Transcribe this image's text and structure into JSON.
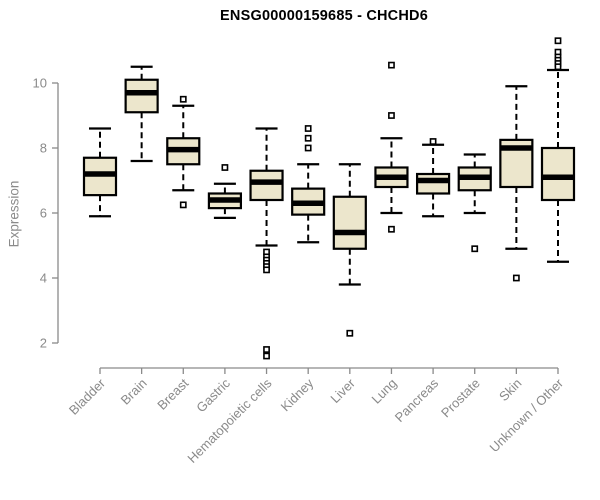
{
  "window": {
    "title": "ENSG00000159685 - CHCHD6"
  },
  "colors": {
    "box_fill": "#ECE6CC",
    "box_stroke": "#000000",
    "median": "#000000",
    "whisker": "#000000",
    "outlier_stroke": "#000000",
    "outlier_fill": "#ffffff",
    "axis": "#8a8a8a",
    "tick_label": "#8a8a8a",
    "title": "#000000",
    "background": "#ffffff"
  },
  "chart_data": {
    "type": "boxplot",
    "title": "ENSG00000159685 - CHCHD6",
    "xlabel": "",
    "ylabel": "Expression",
    "grid": false,
    "legend": "none",
    "y_axis_ticks": [
      2,
      4,
      6,
      8,
      10
    ],
    "y_axis_range": [
      2,
      10
    ],
    "categories": [
      "Bladder",
      "Brain",
      "Breast",
      "Gastric",
      "Hematopoietic cells",
      "Kidney",
      "Liver",
      "Lung",
      "Pancreas",
      "Prostate",
      "Skin",
      "Unknown / Other"
    ],
    "boxes": [
      {
        "category": "Bladder",
        "whisker_low": 5.9,
        "q1": 6.55,
        "median": 7.2,
        "q3": 7.7,
        "whisker_high": 8.6,
        "outliers": []
      },
      {
        "category": "Brain",
        "whisker_low": 7.6,
        "q1": 9.1,
        "median": 9.7,
        "q3": 10.1,
        "whisker_high": 10.5,
        "outliers": []
      },
      {
        "category": "Breast",
        "whisker_low": 6.7,
        "q1": 7.5,
        "median": 7.95,
        "q3": 8.3,
        "whisker_high": 9.3,
        "outliers": [
          9.5,
          6.25
        ]
      },
      {
        "category": "Gastric",
        "whisker_low": 5.85,
        "q1": 6.15,
        "median": 6.4,
        "q3": 6.6,
        "whisker_high": 6.9,
        "outliers": [
          7.4
        ]
      },
      {
        "category": "Hematopoietic cells",
        "whisker_low": 5.0,
        "q1": 6.4,
        "median": 6.95,
        "q3": 7.3,
        "whisker_high": 8.6,
        "outliers": [
          4.8,
          4.65,
          4.55,
          4.45,
          4.35,
          4.25,
          1.8,
          1.6
        ]
      },
      {
        "category": "Kidney",
        "whisker_low": 5.1,
        "q1": 5.95,
        "median": 6.3,
        "q3": 6.75,
        "whisker_high": 7.5,
        "outliers": [
          8.6,
          8.3,
          8.0
        ]
      },
      {
        "category": "Liver",
        "whisker_low": 3.8,
        "q1": 4.9,
        "median": 5.4,
        "q3": 6.5,
        "whisker_high": 7.5,
        "outliers": [
          2.3
        ]
      },
      {
        "category": "Lung",
        "whisker_low": 6.0,
        "q1": 6.8,
        "median": 7.1,
        "q3": 7.4,
        "whisker_high": 8.3,
        "outliers": [
          10.55,
          9.0,
          5.5
        ]
      },
      {
        "category": "Pancreas",
        "whisker_low": 5.9,
        "q1": 6.6,
        "median": 7.0,
        "q3": 7.2,
        "whisker_high": 8.1,
        "outliers": [
          8.2
        ]
      },
      {
        "category": "Prostate",
        "whisker_low": 6.0,
        "q1": 6.7,
        "median": 7.1,
        "q3": 7.4,
        "whisker_high": 7.8,
        "outliers": [
          4.9
        ]
      },
      {
        "category": "Skin",
        "whisker_low": 4.9,
        "q1": 6.8,
        "median": 8.0,
        "q3": 8.25,
        "whisker_high": 9.9,
        "outliers": [
          4.0
        ]
      },
      {
        "category": "Unknown / Other",
        "whisker_low": 4.5,
        "q1": 6.4,
        "median": 7.1,
        "q3": 8.0,
        "whisker_high": 10.4,
        "outliers": [
          11.3,
          10.95,
          10.8,
          10.7,
          10.6,
          10.5
        ]
      }
    ]
  }
}
